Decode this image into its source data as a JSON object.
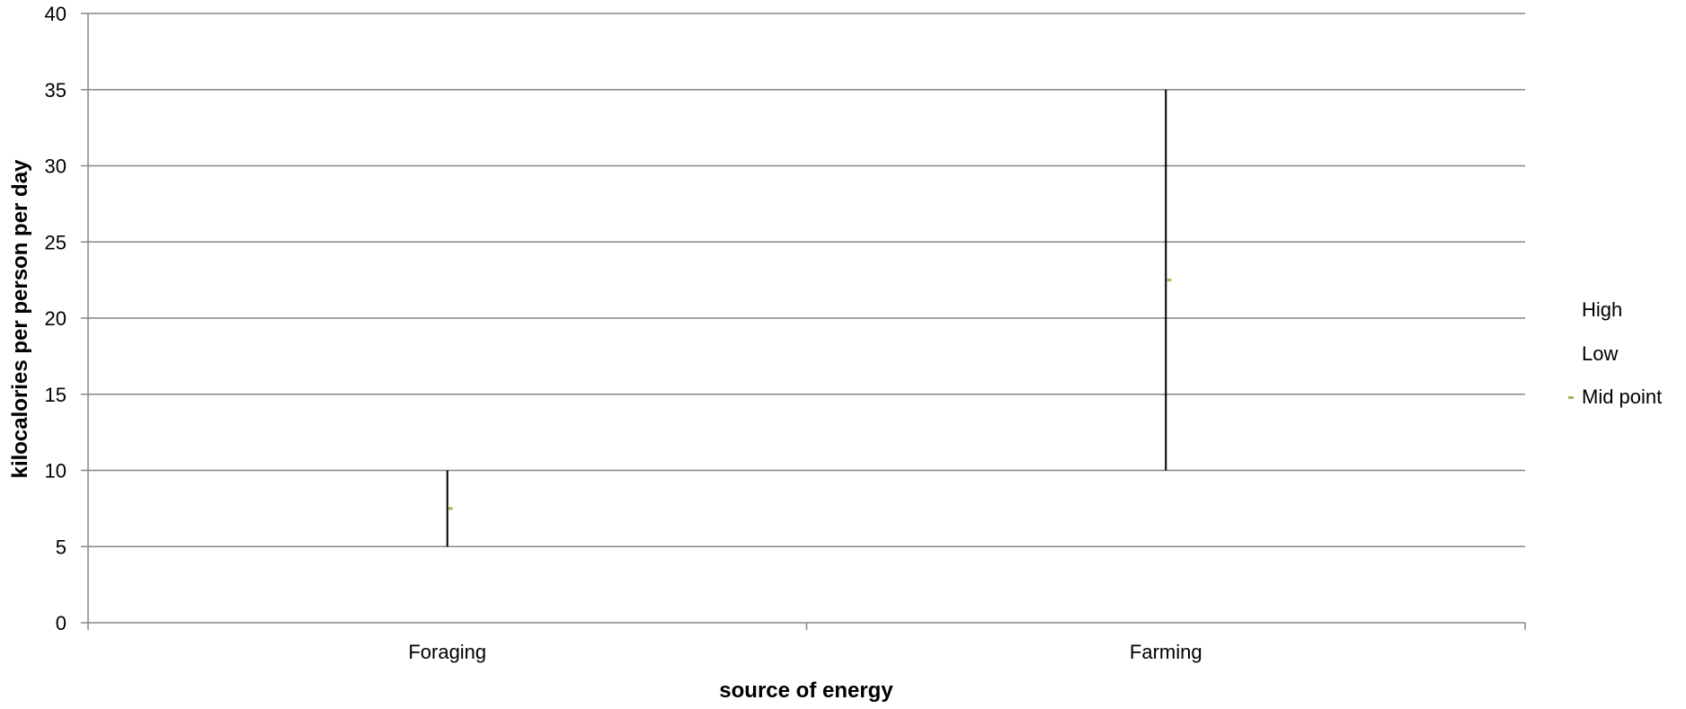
{
  "chart_data": {
    "type": "stock",
    "categories": [
      "Foraging",
      "Farming"
    ],
    "series": [
      {
        "name": "High",
        "values": [
          10,
          35
        ]
      },
      {
        "name": "Low",
        "values": [
          5,
          10
        ]
      },
      {
        "name": "Mid point",
        "values": [
          7.5,
          22.5
        ]
      }
    ],
    "xlabel": "source of energy",
    "ylabel": "kilocalories per person per day",
    "ylim": [
      0,
      40
    ],
    "yticks": [
      0,
      5,
      10,
      15,
      20,
      25,
      30,
      35,
      40
    ],
    "grid": true,
    "legend_position": "right",
    "colors": {
      "range_line": "#000000",
      "mid_point": "#9BBB59",
      "gridline": "#868686",
      "axis": "#868686"
    }
  }
}
